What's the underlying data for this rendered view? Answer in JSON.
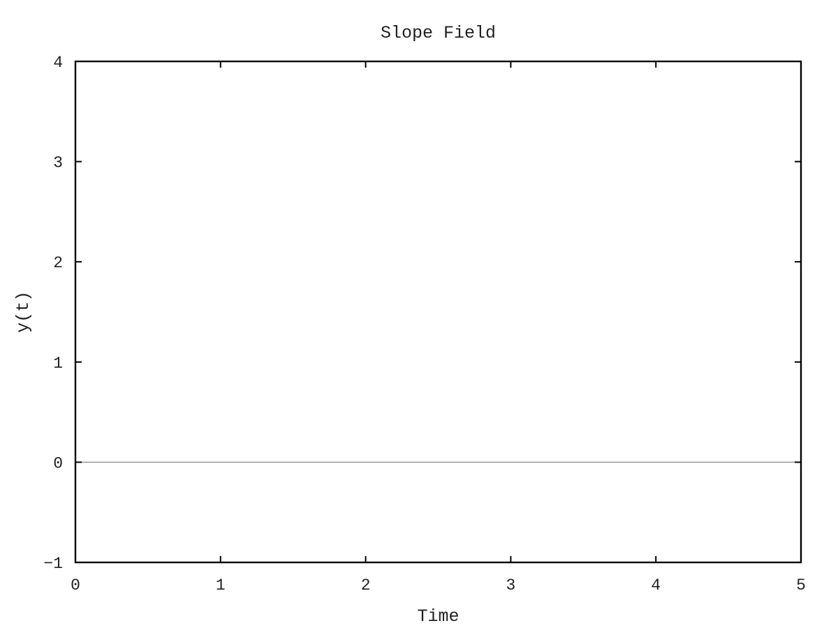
{
  "chart_data": {
    "type": "line",
    "title": "Slope Field",
    "xlabel": "Time",
    "ylabel": "y(t)",
    "xlim": [
      0,
      5
    ],
    "ylim": [
      -1,
      4
    ],
    "x_ticks": [
      {
        "value": 0,
        "label": "0"
      },
      {
        "value": 1,
        "label": "1"
      },
      {
        "value": 2,
        "label": "2"
      },
      {
        "value": 3,
        "label": "3"
      },
      {
        "value": 4,
        "label": "4"
      },
      {
        "value": 5,
        "label": "5"
      }
    ],
    "y_ticks": [
      {
        "value": -1,
        "label": "−1"
      },
      {
        "value": 0,
        "label": "0"
      },
      {
        "value": 1,
        "label": "1"
      },
      {
        "value": 2,
        "label": "2"
      },
      {
        "value": 3,
        "label": "3"
      },
      {
        "value": 4,
        "label": "4"
      }
    ],
    "grid": false,
    "legend": "none",
    "series": [
      {
        "x": [
          0,
          5
        ],
        "y": [
          0,
          0
        ],
        "color": "#888888"
      }
    ],
    "colors": {
      "axes": "#000000",
      "text": "#222222",
      "series_line": "#888888",
      "background": "#ffffff"
    }
  }
}
